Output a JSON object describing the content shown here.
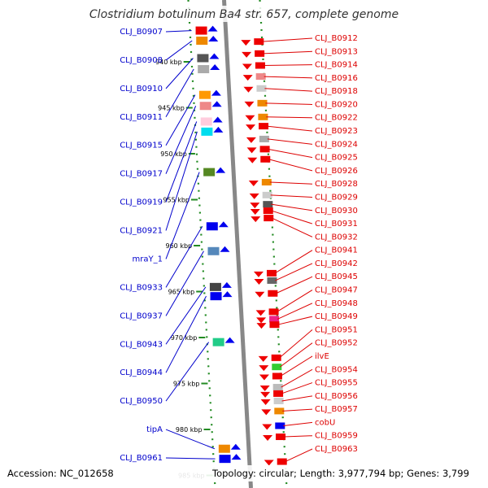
{
  "title": "Clostridium botulinum Ba4 str. 657, complete genome",
  "accession_label": "Accession: NC_012658",
  "topology_label": "Topology: circular; Length: 3,977,794 bp; Genes: 3,799",
  "colors": {
    "forward_label": "#0000cc",
    "reverse_label": "#dd0000",
    "forward_arrow": "#0000ee",
    "reverse_arrow": "#ee0000",
    "backbone": "#888888",
    "ruler_tick": "#228b22"
  },
  "kbp_marks": [
    {
      "label": "940 kbp",
      "kbp": 940
    },
    {
      "label": "945 kbp",
      "kbp": 945
    },
    {
      "label": "950 kbp",
      "kbp": 950
    },
    {
      "label": "955 kbp",
      "kbp": 955
    },
    {
      "label": "960 kbp",
      "kbp": 960
    },
    {
      "label": "965 kbp",
      "kbp": 965
    },
    {
      "label": "970 kbp",
      "kbp": 970
    },
    {
      "label": "975 kbp",
      "kbp": 975
    },
    {
      "label": "980 kbp",
      "kbp": 980
    },
    {
      "label": "985 kbp",
      "kbp": 985
    }
  ],
  "forward_genes": [
    {
      "label": "CLJ_B0907",
      "kbp": 936.6,
      "color": "#ee0000"
    },
    {
      "label": "CLJ_B0908",
      "kbp": 937.7,
      "color": "#ee8800"
    },
    {
      "label": "CLJ_B0910",
      "kbp": 939.6,
      "color": "#555555"
    },
    {
      "label": "CLJ_B0911",
      "kbp": 940.8,
      "color": "#aaaaaa"
    },
    {
      "label": "CLJ_B0915",
      "kbp": 943.6,
      "color": "#ff9900"
    },
    {
      "label": "CLJ_B0917",
      "kbp": 944.8,
      "color": "#ee8888"
    },
    {
      "label": "CLJ_B0919",
      "kbp": 946.5,
      "color": "#ffccdd"
    },
    {
      "label": "CLJ_B0921",
      "kbp": 947.6,
      "color": "#00ddee"
    },
    {
      "label": "mraY_1",
      "kbp": 952.0,
      "color": "#558822"
    },
    {
      "label": "CLJ_B0933",
      "kbp": 957.9,
      "color": "#0000ee"
    },
    {
      "label": "CLJ_B0937",
      "kbp": 960.6,
      "color": "#5588bb"
    },
    {
      "label": "CLJ_B0943",
      "kbp": 964.5,
      "color": "#444444"
    },
    {
      "label": "CLJ_B0944",
      "kbp": 965.5,
      "color": "#0000ee"
    },
    {
      "label": "CLJ_B0950",
      "kbp": 970.5,
      "color": "#22cc88"
    },
    {
      "label": "tipA",
      "kbp": 982.1,
      "color": "#ee8800"
    },
    {
      "label": "CLJ_B0961",
      "kbp": 983.2,
      "color": "#0000ee"
    }
  ],
  "reverse_genes": [
    {
      "label": "CLJ_B0912",
      "kbp": 937.8,
      "color": "#ee0000"
    },
    {
      "label": "CLJ_B0913",
      "kbp": 939.1,
      "color": "#ee0000"
    },
    {
      "label": "CLJ_B0914",
      "kbp": 940.4,
      "color": "#ee0000"
    },
    {
      "label": "CLJ_B0916",
      "kbp": 941.6,
      "color": "#ee8888"
    },
    {
      "label": "CLJ_B0918",
      "kbp": 942.9,
      "color": "#cccccc"
    },
    {
      "label": "CLJ_B0920",
      "kbp": 944.5,
      "color": "#ee8800"
    },
    {
      "label": "CLJ_B0922",
      "kbp": 946.0,
      "color": "#ee8800"
    },
    {
      "label": "CLJ_B0923",
      "kbp": 947.0,
      "color": "#ee0000"
    },
    {
      "label": "CLJ_B0924",
      "kbp": 948.4,
      "color": "#aaaaaa"
    },
    {
      "label": "CLJ_B0925",
      "kbp": 949.5,
      "color": "#ee0000"
    },
    {
      "label": "CLJ_B0926",
      "kbp": 950.6,
      "color": "#ee0000"
    },
    {
      "label": "CLJ_B0928",
      "kbp": 953.1,
      "color": "#ee8800"
    },
    {
      "label": "CLJ_B0929",
      "kbp": 954.5,
      "color": "#cccccc"
    },
    {
      "label": "CLJ_B0930",
      "kbp": 955.5,
      "color": "#555555"
    },
    {
      "label": "CLJ_B0931",
      "kbp": 956.2,
      "color": "#ee0000"
    },
    {
      "label": "CLJ_B0932",
      "kbp": 957.0,
      "color": "#ee0000"
    },
    {
      "label": "CLJ_B0941",
      "kbp": 963.0,
      "color": "#ee0000"
    },
    {
      "label": "CLJ_B0942",
      "kbp": 963.8,
      "color": "#666666"
    },
    {
      "label": "CLJ_B0945",
      "kbp": 965.2,
      "color": "#ee0000"
    },
    {
      "label": "CLJ_B0947",
      "kbp": 967.2,
      "color": "#ee0000"
    },
    {
      "label": "CLJ_B0948",
      "kbp": 968.0,
      "color": "#ee2288"
    },
    {
      "label": "CLJ_B0949",
      "kbp": 968.6,
      "color": "#ee0000"
    },
    {
      "label": "CLJ_B0951",
      "kbp": 972.2,
      "color": "#ee0000"
    },
    {
      "label": "CLJ_B0952",
      "kbp": 973.2,
      "color": "#33cc33"
    },
    {
      "label": "ilvE",
      "kbp": 974.2,
      "color": "#ee0000"
    },
    {
      "label": "CLJ_B0954",
      "kbp": 975.4,
      "color": "#bbbbbb"
    },
    {
      "label": "CLJ_B0955",
      "kbp": 976.1,
      "color": "#ee0000"
    },
    {
      "label": "CLJ_B0956",
      "kbp": 976.9,
      "color": "#cccccc"
    },
    {
      "label": "CLJ_B0957",
      "kbp": 978.0,
      "color": "#ee8800"
    },
    {
      "label": "cobU",
      "kbp": 979.6,
      "color": "#0000ee"
    },
    {
      "label": "CLJ_B0959",
      "kbp": 980.8,
      "color": "#ee0000"
    },
    {
      "label": "CLJ_B0963",
      "kbp": 983.5,
      "color": "#ee0000"
    }
  ]
}
